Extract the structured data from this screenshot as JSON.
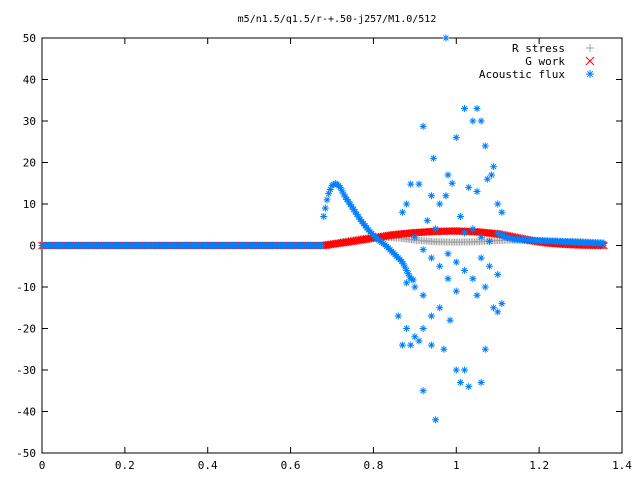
{
  "chart_data": {
    "type": "scatter",
    "title": "m5/n1.5/q1.5/r-+.50-j257/M1.0/512",
    "xlabel": "",
    "ylabel": "",
    "xlim": [
      0,
      1.4
    ],
    "ylim": [
      -50,
      50
    ],
    "x_ticks": [
      "0",
      "0.2",
      "0.4",
      "0.6",
      "0.8",
      "1",
      "1.2",
      "1.4"
    ],
    "y_ticks": [
      "50",
      "40",
      "30",
      "20",
      "10",
      "0",
      "-10",
      "-20",
      "-30",
      "-40",
      "-50"
    ],
    "grid": false,
    "legend_position": "top-right",
    "series": [
      {
        "name": "R stress",
        "marker": "+",
        "color": "#a0a0a0",
        "curve": [
          [
            0.0,
            0
          ],
          [
            0.68,
            0
          ],
          [
            0.7,
            0.4
          ],
          [
            0.74,
            1.2
          ],
          [
            0.78,
            1.8
          ],
          [
            0.82,
            2.0
          ],
          [
            0.86,
            1.8
          ],
          [
            0.9,
            1.3
          ],
          [
            0.95,
            0.9
          ],
          [
            1.0,
            0.8
          ],
          [
            1.05,
            0.9
          ],
          [
            1.1,
            1.2
          ],
          [
            1.13,
            1.3
          ],
          [
            1.16,
            1.2
          ],
          [
            1.2,
            1.1
          ],
          [
            1.25,
            1.0
          ],
          [
            1.3,
            0.9
          ],
          [
            1.36,
            0.6
          ]
        ]
      },
      {
        "name": "G work",
        "marker": "x",
        "color": "#ff0000",
        "curve": [
          [
            0.0,
            0
          ],
          [
            0.68,
            0
          ],
          [
            0.7,
            0.3
          ],
          [
            0.75,
            1.0
          ],
          [
            0.8,
            1.8
          ],
          [
            0.85,
            2.6
          ],
          [
            0.9,
            3.1
          ],
          [
            0.95,
            3.4
          ],
          [
            1.0,
            3.5
          ],
          [
            1.05,
            3.3
          ],
          [
            1.1,
            2.8
          ],
          [
            1.14,
            2.0
          ],
          [
            1.18,
            1.2
          ],
          [
            1.22,
            0.6
          ],
          [
            1.26,
            0.3
          ],
          [
            1.3,
            0.1
          ],
          [
            1.36,
            0.0
          ]
        ]
      },
      {
        "name": "Acoustic flux",
        "marker": "*",
        "color": "#0080ff",
        "curve": [
          [
            0.0,
            0
          ],
          [
            0.68,
            0
          ],
          [
            0.68,
            7
          ],
          [
            0.69,
            12
          ],
          [
            0.7,
            14.5
          ],
          [
            0.71,
            15
          ],
          [
            0.72,
            14
          ],
          [
            0.73,
            12
          ],
          [
            0.75,
            9
          ],
          [
            0.77,
            6
          ],
          [
            0.79,
            3.5
          ],
          [
            0.81,
            1.5
          ],
          [
            0.83,
            0
          ],
          [
            0.85,
            -2
          ],
          [
            0.87,
            -4
          ],
          [
            0.88,
            -6
          ],
          [
            0.89,
            -8
          ],
          [
            0.9,
            -8.5
          ]
        ],
        "tail_curve": [
          [
            1.1,
            3
          ],
          [
            1.12,
            2
          ],
          [
            1.14,
            1.5
          ],
          [
            1.2,
            1.2
          ],
          [
            1.25,
            1.0
          ],
          [
            1.3,
            0.8
          ],
          [
            1.36,
            0.5
          ]
        ],
        "scatter": [
          [
            0.975,
            50
          ],
          [
            0.945,
            21
          ],
          [
            0.92,
            28.7
          ],
          [
            0.89,
            14.8
          ],
          [
            0.91,
            14.8
          ],
          [
            0.94,
            12
          ],
          [
            0.96,
            10
          ],
          [
            0.98,
            17
          ],
          [
            1.0,
            26
          ],
          [
            1.02,
            33
          ],
          [
            1.05,
            33
          ],
          [
            1.04,
            30
          ],
          [
            1.06,
            30
          ],
          [
            1.07,
            24
          ],
          [
            1.09,
            19
          ],
          [
            1.085,
            17
          ],
          [
            1.075,
            16
          ],
          [
            1.03,
            14
          ],
          [
            1.05,
            13
          ],
          [
            0.99,
            15
          ],
          [
            0.975,
            12
          ],
          [
            1.1,
            10
          ],
          [
            1.11,
            8
          ],
          [
            0.88,
            10
          ],
          [
            0.87,
            8
          ],
          [
            0.93,
            6
          ],
          [
            0.95,
            4
          ],
          [
            1.01,
            7
          ],
          [
            1.02,
            3
          ],
          [
            1.04,
            4
          ],
          [
            1.06,
            2
          ],
          [
            1.08,
            1
          ],
          [
            0.9,
            2
          ],
          [
            0.92,
            -1
          ],
          [
            0.94,
            -3
          ],
          [
            0.96,
            -5
          ],
          [
            0.98,
            -2
          ],
          [
            1.0,
            -4
          ],
          [
            1.02,
            -6
          ],
          [
            1.04,
            -8
          ],
          [
            1.06,
            -3
          ],
          [
            1.08,
            -5
          ],
          [
            1.1,
            -7
          ],
          [
            0.88,
            -9
          ],
          [
            0.9,
            -10
          ],
          [
            0.92,
            -12
          ],
          [
            0.96,
            -15
          ],
          [
            0.94,
            -17
          ],
          [
            0.98,
            -8
          ],
          [
            1.0,
            -11
          ],
          [
            1.07,
            -10
          ],
          [
            1.09,
            -15
          ],
          [
            1.1,
            -16
          ],
          [
            1.11,
            -14
          ],
          [
            0.86,
            -17
          ],
          [
            0.88,
            -20
          ],
          [
            0.9,
            -22
          ],
          [
            0.94,
            -24
          ],
          [
            0.97,
            -25
          ],
          [
            0.87,
            -24
          ],
          [
            0.89,
            -24
          ],
          [
            0.91,
            -23
          ],
          [
            0.92,
            -35
          ],
          [
            0.95,
            -42
          ],
          [
            1.0,
            -30
          ],
          [
            1.01,
            -33
          ],
          [
            1.02,
            -30
          ],
          [
            1.03,
            -34
          ],
          [
            1.06,
            -33
          ],
          [
            1.07,
            -25
          ],
          [
            0.92,
            -20
          ],
          [
            0.985,
            -18
          ],
          [
            1.05,
            -12
          ]
        ]
      }
    ]
  },
  "colors": {
    "axis": "#000000",
    "background": "#ffffff"
  }
}
